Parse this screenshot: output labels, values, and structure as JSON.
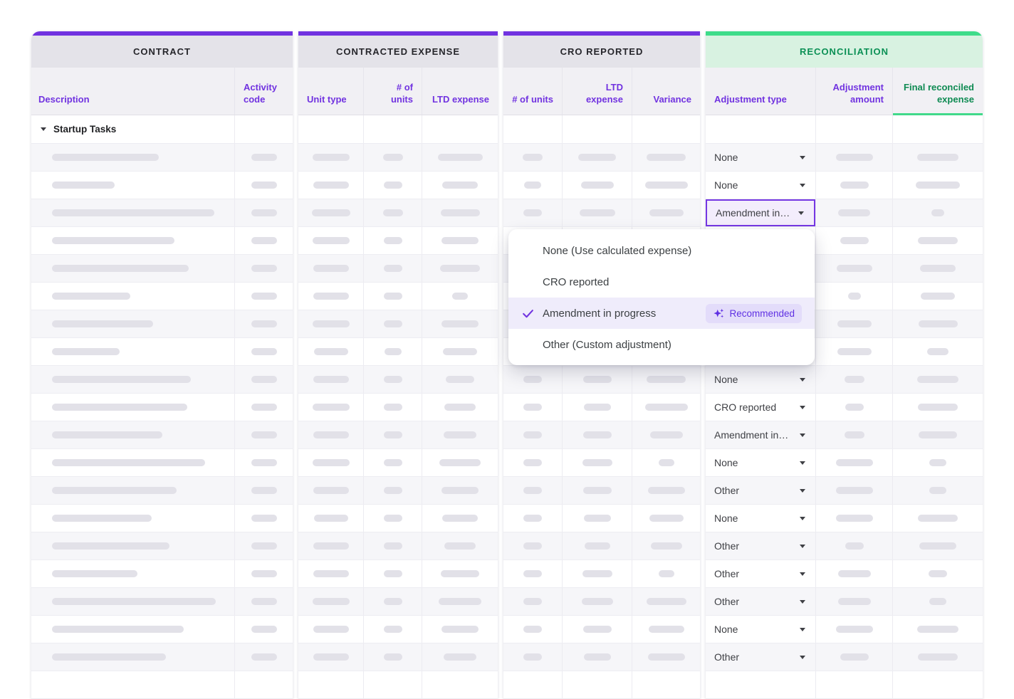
{
  "groups": [
    {
      "title": "CONTRACT",
      "accent_color": "#7133e0",
      "columns": [
        {
          "label": "Description",
          "align": "left"
        },
        {
          "label": "Activity code",
          "align": "left"
        }
      ]
    },
    {
      "title": "CONTRACTED EXPENSE",
      "accent_color": "#7133e0",
      "columns": [
        {
          "label": "Unit type",
          "align": "left"
        },
        {
          "label": "# of units",
          "align": "right"
        },
        {
          "label": "LTD expense",
          "align": "right"
        }
      ]
    },
    {
      "title": "CRO REPORTED",
      "accent_color": "#7133e0",
      "columns": [
        {
          "label": "# of units",
          "align": "right"
        },
        {
          "label": "LTD expense",
          "align": "right"
        },
        {
          "label": "Variance",
          "align": "right"
        }
      ]
    },
    {
      "title": "RECONCILIATION",
      "accent_color": "#3edc8a",
      "columns": [
        {
          "label": "Adjustment type",
          "align": "left"
        },
        {
          "label": "Adjustment amount",
          "align": "right"
        },
        {
          "label": "Final reconciled expense",
          "align": "right",
          "highlight": "green"
        }
      ]
    }
  ],
  "group_row": {
    "label": "Startup Tasks"
  },
  "dropdown": {
    "items": [
      {
        "label": "None (Use calculated expense)",
        "selected": false
      },
      {
        "label": "CRO reported",
        "selected": false
      },
      {
        "label": "Amendment in progress",
        "selected": true,
        "badge_label": "Recommended"
      },
      {
        "label": "Other (Custom adjustment)",
        "selected": false
      }
    ]
  },
  "rows": [
    {
      "desc": 150,
      "act": 36,
      "unit": 52,
      "units": 28,
      "ltd": 63,
      "cu": 28,
      "cl": 53,
      "va": 55,
      "adj": "None",
      "amt": 52,
      "fin": 58
    },
    {
      "desc": 88,
      "act": 36,
      "unit": 50,
      "units": 26,
      "ltd": 50,
      "cu": 24,
      "cl": 46,
      "va": 60,
      "adj": "None",
      "amt": 40,
      "fin": 62
    },
    {
      "desc": 228,
      "act": 36,
      "unit": 54,
      "units": 28,
      "ltd": 55,
      "cu": 26,
      "cl": 50,
      "va": 48,
      "adj": "Amendment in…",
      "active": true,
      "amt": 45,
      "fin": 18
    },
    {
      "desc": 172,
      "act": 36,
      "unit": 52,
      "units": 26,
      "ltd": 52,
      "cu": 0,
      "cl": 0,
      "va": 0,
      "adj": "",
      "amt": 40,
      "fin": 56
    },
    {
      "desc": 192,
      "act": 36,
      "unit": 50,
      "units": 26,
      "ltd": 56,
      "cu": 0,
      "cl": 0,
      "va": 0,
      "adj": "",
      "amt": 50,
      "fin": 50
    },
    {
      "desc": 110,
      "act": 36,
      "unit": 50,
      "units": 26,
      "ltd": 22,
      "cu": 0,
      "cl": 0,
      "va": 0,
      "adj": "",
      "amt": 18,
      "fin": 48
    },
    {
      "desc": 142,
      "act": 36,
      "unit": 52,
      "units": 26,
      "ltd": 52,
      "cu": 0,
      "cl": 0,
      "va": 0,
      "adj": "",
      "amt": 48,
      "fin": 55
    },
    {
      "desc": 95,
      "act": 36,
      "unit": 48,
      "units": 24,
      "ltd": 48,
      "cu": 0,
      "cl": 0,
      "va": 0,
      "adj": "",
      "amt": 48,
      "fin": 30
    },
    {
      "desc": 195,
      "act": 36,
      "unit": 50,
      "units": 26,
      "ltd": 40,
      "cu": 26,
      "cl": 40,
      "va": 55,
      "adj": "None",
      "amt": 28,
      "fin": 58
    },
    {
      "desc": 190,
      "act": 36,
      "unit": 52,
      "units": 26,
      "ltd": 44,
      "cu": 26,
      "cl": 38,
      "va": 60,
      "adj": "CRO reported",
      "amt": 26,
      "fin": 56
    },
    {
      "desc": 155,
      "act": 36,
      "unit": 50,
      "units": 26,
      "ltd": 46,
      "cu": 26,
      "cl": 40,
      "va": 46,
      "adj": "Amendment in…",
      "amt": 28,
      "fin": 54
    },
    {
      "desc": 215,
      "act": 36,
      "unit": 52,
      "units": 26,
      "ltd": 58,
      "cu": 26,
      "cl": 42,
      "va": 22,
      "adj": "None",
      "amt": 52,
      "fin": 24
    },
    {
      "desc": 175,
      "act": 36,
      "unit": 50,
      "units": 26,
      "ltd": 52,
      "cu": 26,
      "cl": 40,
      "va": 52,
      "adj": "Other",
      "amt": 52,
      "fin": 24
    },
    {
      "desc": 140,
      "act": 36,
      "unit": 48,
      "units": 26,
      "ltd": 50,
      "cu": 26,
      "cl": 38,
      "va": 48,
      "adj": "None",
      "amt": 52,
      "fin": 56
    },
    {
      "desc": 165,
      "act": 36,
      "unit": 50,
      "units": 26,
      "ltd": 44,
      "cu": 26,
      "cl": 36,
      "va": 44,
      "adj": "Other",
      "amt": 26,
      "fin": 52
    },
    {
      "desc": 120,
      "act": 36,
      "unit": 50,
      "units": 26,
      "ltd": 54,
      "cu": 26,
      "cl": 42,
      "va": 22,
      "adj": "Other",
      "amt": 46,
      "fin": 26
    },
    {
      "desc": 230,
      "act": 36,
      "unit": 52,
      "units": 26,
      "ltd": 60,
      "cu": 26,
      "cl": 44,
      "va": 56,
      "adj": "Other",
      "amt": 46,
      "fin": 24
    },
    {
      "desc": 185,
      "act": 36,
      "unit": 50,
      "units": 26,
      "ltd": 52,
      "cu": 26,
      "cl": 40,
      "va": 50,
      "adj": "None",
      "amt": 52,
      "fin": 58
    },
    {
      "desc": 160,
      "act": 36,
      "unit": 50,
      "units": 26,
      "ltd": 46,
      "cu": 26,
      "cl": 38,
      "va": 52,
      "adj": "Other",
      "amt": 40,
      "fin": 56
    }
  ],
  "colors": {
    "purple_accent": "#7133e0",
    "green_accent": "#3edc8a",
    "green_header_bg": "#d8f2e1",
    "green_text": "#0e8a52",
    "gray_header_bg": "#e4e3e9",
    "colhead_bg": "#f1f0f4",
    "row_alt_bg": "#f6f6f9",
    "skeleton_pill": "#e2e1e8",
    "selected_item_bg": "#efecfb",
    "badge_bg": "#e3dcfa",
    "badge_text": "#5f30e3",
    "active_cell_border": "#7537e3",
    "active_cell_bg": "#f3edfc"
  }
}
